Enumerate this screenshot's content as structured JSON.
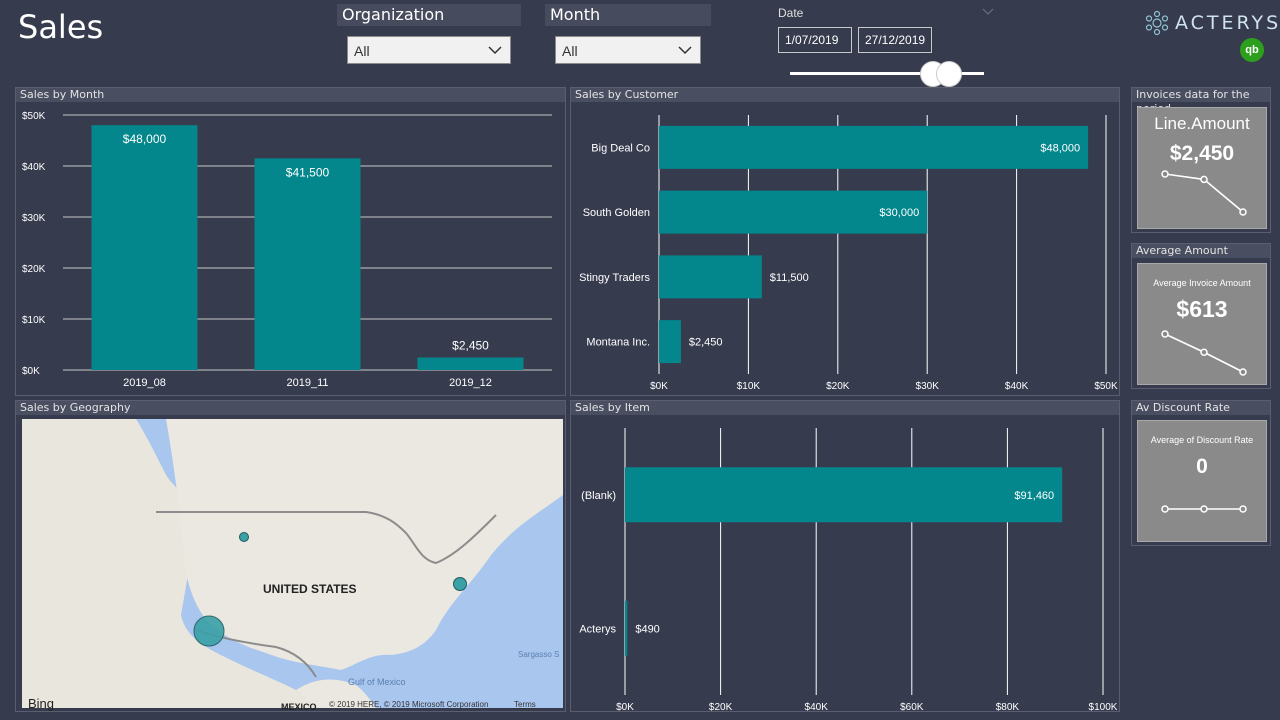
{
  "page": {
    "title": "Sales"
  },
  "slicers": {
    "organization": {
      "label": "Organization",
      "value": "All"
    },
    "month": {
      "label": "Month",
      "value": "All"
    },
    "date": {
      "label": "Date",
      "start": "1/07/2019",
      "end": "27/12/2019"
    }
  },
  "brand": {
    "name": "ACTERYS",
    "qb_badge": "qb"
  },
  "colors": {
    "bar": "#03878c",
    "background": "#373b4e",
    "panel_header": "#4a4e61",
    "card": "#8a8a8a"
  },
  "panels": {
    "sales_by_month": "Sales by Month",
    "sales_by_customer": "Sales by Customer",
    "sales_by_geography": "Sales by Geography",
    "sales_by_item": "Sales by Item",
    "invoices": "Invoices data for the period",
    "average_amount": "Average Amount",
    "av_discount_rate": "Av Discount Rate"
  },
  "cards": {
    "line_amount": {
      "label": "Line.Amount",
      "value": "$2,450"
    },
    "average_invoice": {
      "label": "Average Invoice Amount",
      "value": "$613"
    },
    "discount_rate": {
      "label": "Average of Discount Rate",
      "value": "0"
    }
  },
  "map": {
    "country_label": "UNITED STATES",
    "labels": {
      "sargasso": "Sargasso S",
      "gulf": "Gulf of Mexico",
      "mexico": "MEXICO"
    },
    "bing": "Bing",
    "copyright": "© 2019 HERE, © 2019 Microsoft Corporation",
    "terms": "Terms"
  },
  "chart_data": [
    {
      "id": "sales_by_month",
      "type": "bar",
      "title": "Sales by Month",
      "categories": [
        "2019_08",
        "2019_11",
        "2019_12"
      ],
      "values": [
        48000,
        41500,
        2450
      ],
      "data_labels": [
        "$48,000",
        "$41,500",
        "$2,450"
      ],
      "ylim": [
        0,
        50000
      ],
      "y_ticks": [
        0,
        10000,
        20000,
        30000,
        40000,
        50000
      ],
      "y_tick_labels": [
        "$0K",
        "$10K",
        "$20K",
        "$30K",
        "$40K",
        "$50K"
      ]
    },
    {
      "id": "sales_by_customer",
      "type": "bar",
      "orientation": "horizontal",
      "title": "Sales by Customer",
      "categories": [
        "Big Deal Co",
        "South Golden",
        "Stingy Traders",
        "Montana Inc."
      ],
      "values": [
        48000,
        30000,
        11500,
        2450
      ],
      "data_labels": [
        "$48,000",
        "$30,000",
        "$11,500",
        "$2,450"
      ],
      "xlim": [
        0,
        50000
      ],
      "x_ticks": [
        0,
        10000,
        20000,
        30000,
        40000,
        50000
      ],
      "x_tick_labels": [
        "$0K",
        "$10K",
        "$20K",
        "$30K",
        "$40K",
        "$50K"
      ]
    },
    {
      "id": "sales_by_item",
      "type": "bar",
      "orientation": "horizontal",
      "title": "Sales by Item",
      "categories": [
        "(Blank)",
        "Acterys"
      ],
      "values": [
        91460,
        490
      ],
      "data_labels": [
        "$91,460",
        "$490"
      ],
      "xlim": [
        0,
        100000
      ],
      "x_ticks": [
        0,
        20000,
        40000,
        60000,
        80000,
        100000
      ],
      "x_tick_labels": [
        "$0K",
        "$20K",
        "$40K",
        "$60K",
        "$80K",
        "$100K"
      ]
    },
    {
      "id": "line_amount_trend",
      "type": "line",
      "values": [
        3,
        2.6,
        0.2
      ]
    },
    {
      "id": "average_invoice_trend",
      "type": "line",
      "values": [
        3,
        1.8,
        0.5
      ]
    },
    {
      "id": "discount_rate_trend",
      "type": "line",
      "values": [
        0,
        0,
        0
      ]
    }
  ]
}
